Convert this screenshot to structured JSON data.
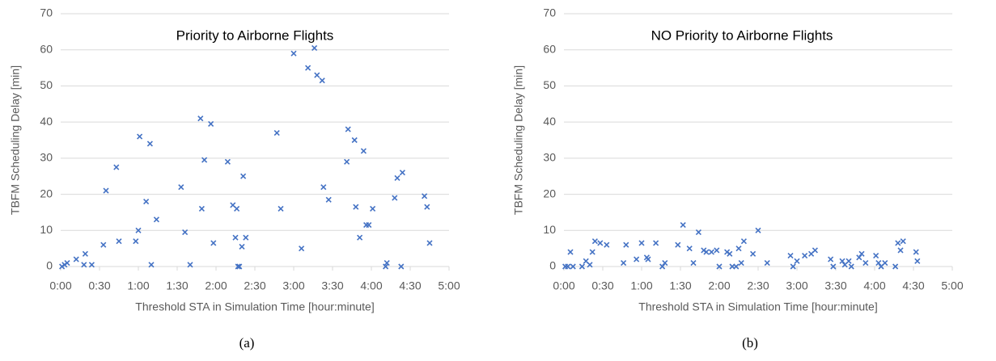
{
  "chart_data": [
    {
      "type": "scatter",
      "title": "Priority to Airborne Flights",
      "caption": "(a)",
      "x_label": "Threshold STA in Simulation Time [hour:minute]",
      "y_label": "TBFM Scheduling Delay [min]",
      "color": "#4472c4",
      "grid": true,
      "xlim": [
        0,
        300
      ],
      "ylim": [
        0,
        70
      ],
      "xticks": [
        {
          "value": 0,
          "label": "0:00"
        },
        {
          "value": 30,
          "label": "0:30"
        },
        {
          "value": 60,
          "label": "1:00"
        },
        {
          "value": 90,
          "label": "1:30"
        },
        {
          "value": 120,
          "label": "2:00"
        },
        {
          "value": 150,
          "label": "2:30"
        },
        {
          "value": 180,
          "label": "3:00"
        },
        {
          "value": 210,
          "label": "3:30"
        },
        {
          "value": 240,
          "label": "4:00"
        },
        {
          "value": 270,
          "label": "4:30"
        },
        {
          "value": 300,
          "label": "5:00"
        }
      ],
      "yticks": [
        0,
        10,
        20,
        30,
        40,
        50,
        60,
        70
      ],
      "x": [
        1,
        3,
        5,
        12,
        18,
        19,
        24,
        33,
        35,
        45,
        43,
        58,
        60,
        61,
        66,
        69,
        70,
        74,
        93,
        96,
        100,
        108,
        109,
        111,
        116,
        118,
        129,
        133,
        135,
        136,
        137,
        138,
        140,
        141,
        143,
        167,
        170,
        180,
        186,
        191,
        196,
        198,
        202,
        203,
        207,
        221,
        222,
        227,
        228,
        231,
        234,
        236,
        238,
        241,
        251,
        252,
        258,
        260,
        264,
        263,
        281,
        283,
        285
      ],
      "values": [
        0,
        0.5,
        1,
        2,
        0.5,
        3.5,
        0.5,
        6,
        21,
        7,
        27.5,
        7,
        10,
        36,
        18,
        34,
        0.5,
        13,
        22,
        9.5,
        0.5,
        41,
        16,
        29.5,
        39.5,
        6.5,
        29,
        17,
        8,
        16,
        0,
        0,
        5.5,
        25,
        8,
        37,
        16,
        59,
        5,
        55,
        60.5,
        53,
        51.5,
        22,
        18.5,
        29,
        38,
        35,
        16.5,
        8,
        32,
        11.5,
        11.5,
        16,
        0,
        1,
        19,
        24.5,
        26,
        0,
        19.5,
        16.5,
        6.5
      ]
    },
    {
      "type": "scatter",
      "title": "NO Priority to Airborne Flights",
      "caption": "(b)",
      "x_label": "Threshold STA in Simulation Time [hour:minute]",
      "y_label": "TBFM Scheduling Delay [min]",
      "color": "#4472c4",
      "grid": true,
      "xlim": [
        0,
        300
      ],
      "ylim": [
        0,
        70
      ],
      "xticks": [
        {
          "value": 0,
          "label": "0:00"
        },
        {
          "value": 30,
          "label": "0:30"
        },
        {
          "value": 60,
          "label": "1:00"
        },
        {
          "value": 90,
          "label": "1:30"
        },
        {
          "value": 120,
          "label": "2:00"
        },
        {
          "value": 150,
          "label": "2:30"
        },
        {
          "value": 180,
          "label": "3:00"
        },
        {
          "value": 210,
          "label": "3:30"
        },
        {
          "value": 240,
          "label": "4:00"
        },
        {
          "value": 270,
          "label": "4:30"
        },
        {
          "value": 300,
          "label": "5:00"
        }
      ],
      "yticks": [
        0,
        10,
        20,
        30,
        40,
        50,
        60,
        70
      ],
      "x": [
        1,
        3,
        5,
        7,
        14,
        17,
        20,
        22,
        24,
        28,
        33,
        46,
        48,
        56,
        60,
        64,
        65,
        71,
        76,
        78,
        88,
        92,
        97,
        100,
        104,
        108,
        110,
        114,
        118,
        120,
        126,
        128,
        130,
        133,
        135,
        137,
        139,
        146,
        150,
        157,
        175,
        177,
        180,
        186,
        191,
        194,
        206,
        208,
        215,
        217,
        220,
        222,
        228,
        230,
        233,
        241,
        243,
        245,
        248,
        256,
        258,
        260,
        262,
        272,
        273
      ],
      "values": [
        0,
        0,
        4,
        0,
        0,
        1.5,
        0.5,
        4,
        7,
        6.5,
        6,
        1,
        6,
        2,
        6.5,
        2.5,
        2,
        6.5,
        0,
        1,
        6,
        11.5,
        5,
        1,
        9.5,
        4.5,
        4,
        4,
        4.5,
        0,
        4,
        3.5,
        0,
        0,
        5,
        1,
        7,
        3.5,
        10,
        1,
        3,
        0,
        1.5,
        3,
        3.5,
        4.5,
        2,
        0,
        1.5,
        0.5,
        1.5,
        0,
        2.5,
        3.5,
        1,
        3,
        1,
        0,
        1,
        0,
        6.5,
        4.5,
        7,
        4,
        1.5
      ]
    }
  ]
}
